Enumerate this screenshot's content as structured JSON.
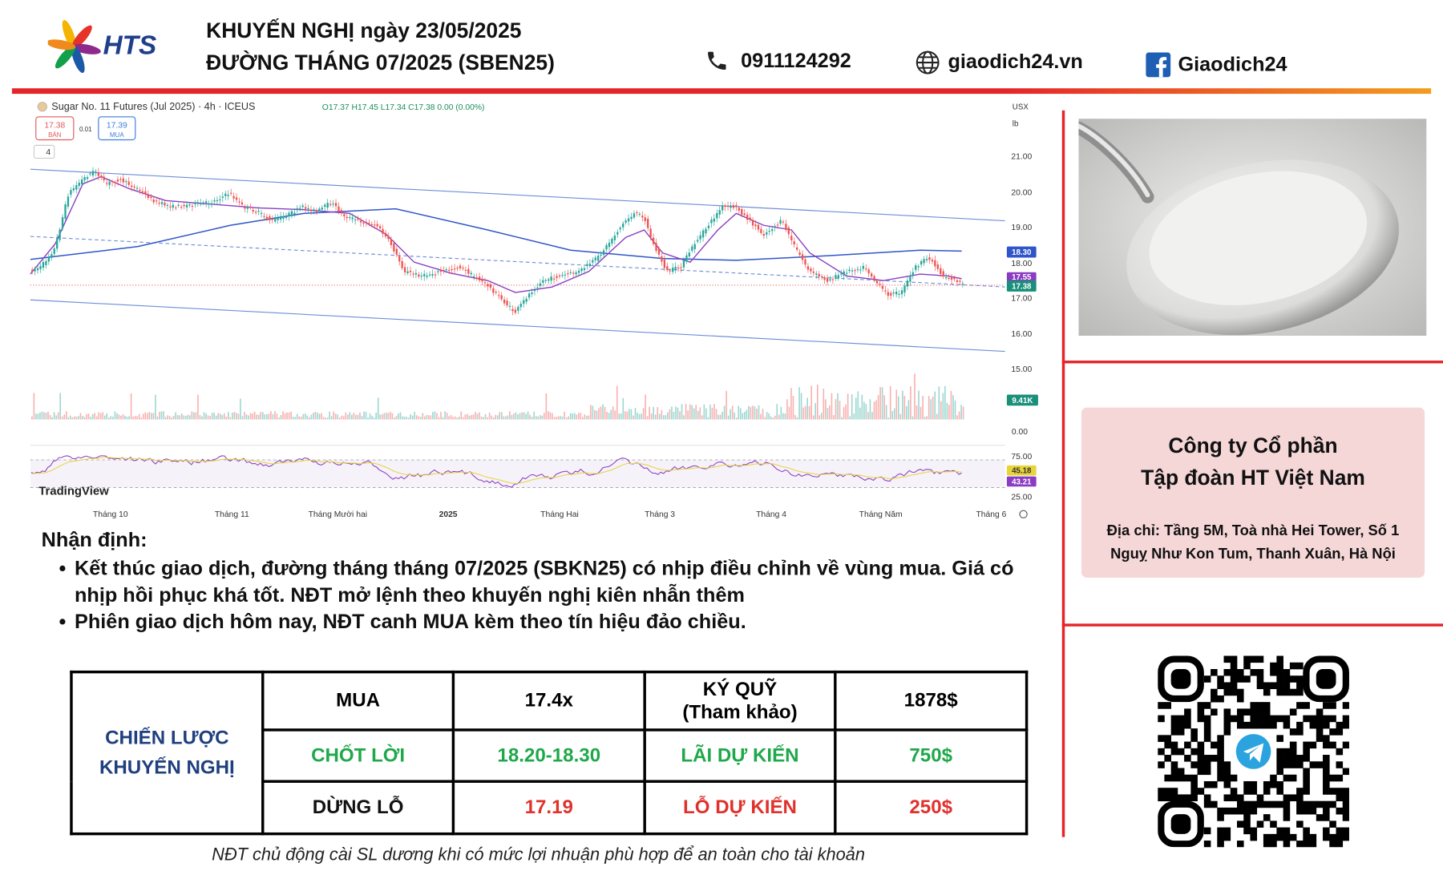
{
  "header": {
    "logo": "HTS",
    "title_line1": "KHUYẾN NGHỊ ngày 23/05/2025",
    "title_line2": "ĐƯỜNG THÁNG 07/2025 (SBEN25)",
    "phone": "0911124292",
    "website": "giaodich24.vn",
    "facebook": "Giaodich24"
  },
  "chart_screenshot": {
    "title": "Sugar No. 11 Futures (Jul 2025) · 4h · ICEUS",
    "ohlc": "O17.37 H17.45 L17.34 C17.38 0.00 (0.00%)",
    "sell_price": "17.38",
    "sell_label": "BÁN",
    "spread": "0.01",
    "buy_price": "17.39",
    "buy_label": "MUA",
    "indicator_count": "4",
    "currency": "USX",
    "unit": "lb",
    "price_axis": [
      "21.00",
      "20.00",
      "19.00",
      "18.00",
      "17.00",
      "16.00",
      "15.00"
    ],
    "volume_axis": "0.00",
    "rsi_axis": [
      "75.00",
      "25.00"
    ],
    "tags": [
      "18.30",
      "17.55",
      "17.38",
      "9.41K",
      "45.18",
      "43.21"
    ],
    "time_axis": [
      "Tháng 10",
      "Tháng 11",
      "Tháng Mười hai",
      "2025",
      "Tháng Hai",
      "Tháng 3",
      "Tháng 4",
      "Tháng Năm",
      "Tháng 6"
    ],
    "watermark": "TradingView"
  },
  "analysis": {
    "heading": "Nhận định:",
    "bullets": [
      "Kết thúc giao dịch, đường tháng tháng 07/2025 (SBKN25) có nhịp điều chỉnh về vùng mua. Giá có nhịp hồi phục khá tốt. NĐT  mở lệnh theo khuyến nghị kiên nhẫn thêm",
      "Phiên giao dịch hôm nay, NĐT canh MUA kèm theo tín hiệu đảo chiều."
    ]
  },
  "table": {
    "strategy_label": [
      "CHIẾN LƯỢC",
      "KHUYẾN NGHỊ"
    ],
    "margin_note": "(Tham khảo)",
    "rows": [
      [
        "MUA",
        "17.4x",
        "KÝ QUỸ",
        "1878$"
      ],
      [
        "CHỐT LỜI",
        "18.20-18.30",
        "LÃI DỰ KIẾN",
        "750$"
      ],
      [
        "DỪNG LỖ",
        "17.19",
        "LỖ DỰ KIẾN",
        "250$"
      ]
    ]
  },
  "footer_note": "NĐT chủ động cài SL dương khi có mức lợi nhuận phù hợp để an toàn cho tài khoản",
  "company": {
    "name_line1": "Công ty Cổ phần",
    "name_line2": "Tập đoàn HT Việt Nam",
    "address_line1": "Địa chỉ: Tầng 5M, Toà nhà Hei Tower, Số 1",
    "address_line2": "Nguỵ Như Kon Tum, Thanh Xuân, Hà Nội"
  }
}
